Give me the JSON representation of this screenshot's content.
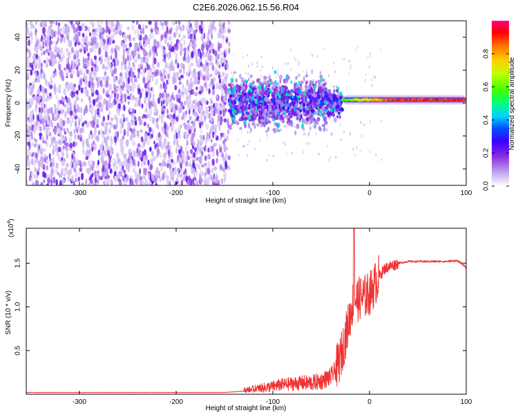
{
  "title": "C2E6.2026.062.15.56.R04",
  "chart_data": [
    {
      "type": "heatmap",
      "title": "C2E6.2026.062.15.56.R04",
      "xlabel": "Height of straight line (km)",
      "ylabel": "Frequency (Hz)",
      "xlim": [
        -355,
        100
      ],
      "ylim": [
        -50,
        50
      ],
      "x_ticks": [
        -300,
        -200,
        -100,
        0,
        100
      ],
      "y_ticks": [
        -40,
        -20,
        0,
        20,
        40
      ],
      "colorbar": {
        "label": "Normalized spectral amplitude",
        "range": [
          0,
          1
        ],
        "ticks": [
          0.0,
          0.2,
          0.4,
          0.6,
          0.8
        ],
        "colormap": [
          "#ffffff",
          "#c0a8f0",
          "#8a2be2",
          "#3b00ff",
          "#0050ff",
          "#00d0ff",
          "#00ff80",
          "#40ff00",
          "#c0ff00",
          "#ffd000",
          "#ff7000",
          "#ff0000",
          "#ff0080"
        ]
      },
      "regions": [
        {
          "name": "noise",
          "x_range": [
            -355,
            -145
          ],
          "freq_range": [
            -50,
            50
          ],
          "amplitude": 0.08
        },
        {
          "name": "signal-cluster",
          "x_range": [
            -145,
            -28
          ],
          "freq_center": 0,
          "freq_halfwidth": 11,
          "amplitude": 0.3
        },
        {
          "name": "line-emission",
          "x_range": [
            -28,
            100
          ],
          "freq_center": 2,
          "amplitude": 0.95
        }
      ]
    },
    {
      "type": "line",
      "xlabel": "Height of straight line (km)",
      "ylabel": "SNR (10 * v/v)",
      "y_scale_label": "(x10",
      "y_scale_exponent": "4",
      "xlim": [
        -355,
        100
      ],
      "ylim": [
        0,
        1.9
      ],
      "x_ticks": [
        -300,
        -200,
        -100,
        0,
        100
      ],
      "y_ticks": [
        0.5,
        1.0,
        1.5
      ],
      "series": [
        {
          "name": "SNR",
          "color": "#ee3333",
          "x": [
            -355,
            -300,
            -250,
            -200,
            -150,
            -125,
            -110,
            -100,
            -90,
            -80,
            -70,
            -60,
            -50,
            -40,
            -35,
            -30,
            -25,
            -20,
            -17,
            -15,
            -12,
            -10,
            -5,
            0,
            5,
            10,
            15,
            20,
            25,
            30,
            40,
            50,
            60,
            70,
            80,
            90,
            95,
            100
          ],
          "y": [
            0.02,
            0.02,
            0.02,
            0.02,
            0.02,
            0.04,
            0.07,
            0.09,
            0.11,
            0.12,
            0.13,
            0.13,
            0.15,
            0.2,
            0.28,
            0.42,
            0.65,
            0.9,
            1.05,
            1.1,
            1.08,
            1.1,
            1.12,
            1.15,
            1.25,
            1.35,
            1.43,
            1.46,
            1.48,
            1.5,
            1.52,
            1.52,
            1.52,
            1.52,
            1.52,
            1.53,
            1.5,
            1.45
          ]
        }
      ]
    }
  ]
}
